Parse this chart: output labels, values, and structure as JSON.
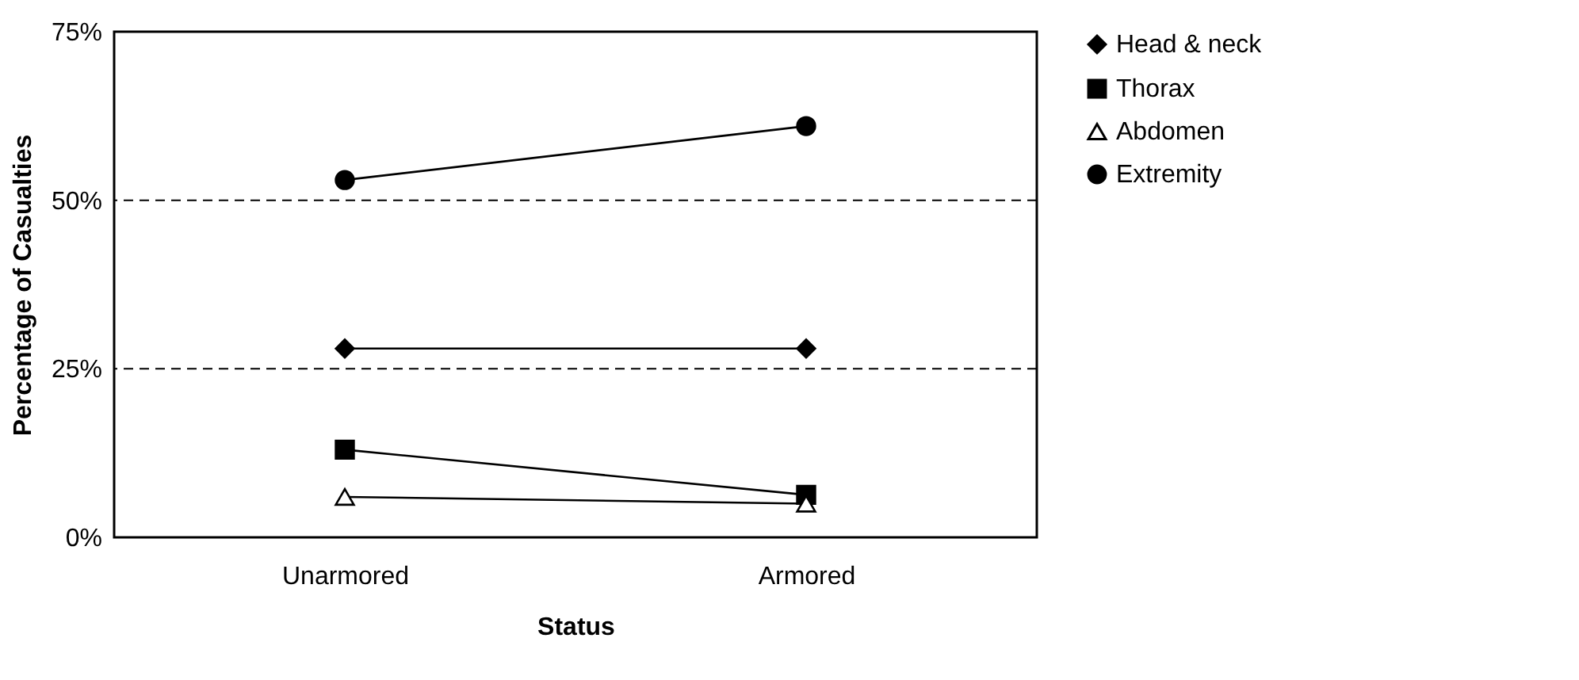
{
  "chart_data": {
    "type": "line",
    "xlabel": "Status",
    "ylabel": "Percentage of Casualties",
    "categories": [
      "Unarmored",
      "Armored"
    ],
    "series": [
      {
        "name": "Head & neck",
        "color": "#000000",
        "marker": "diamond",
        "values": [
          28,
          28
        ]
      },
      {
        "name": "Thorax",
        "color": "#000000",
        "marker": "square",
        "values": [
          13,
          6.3
        ]
      },
      {
        "name": "Abdomen",
        "color": "#000000",
        "marker": "triangle",
        "values": [
          6,
          5
        ]
      },
      {
        "name": "Extremity",
        "color": "#000000",
        "marker": "circle",
        "values": [
          53,
          61
        ]
      }
    ],
    "ylim": [
      0,
      75
    ],
    "yticks": [
      {
        "value": 0,
        "label": "0%"
      },
      {
        "value": 25,
        "label": "25%"
      },
      {
        "value": 50,
        "label": "50%"
      },
      {
        "value": 75,
        "label": "75%"
      }
    ],
    "ref_lines": [
      {
        "axis": "y",
        "value": 25,
        "color": "#000000",
        "line_style": "dashed"
      },
      {
        "axis": "y",
        "value": 50,
        "color": "#000000",
        "line_style": "dashed"
      }
    ],
    "legend": "right",
    "line_style": "solid"
  }
}
